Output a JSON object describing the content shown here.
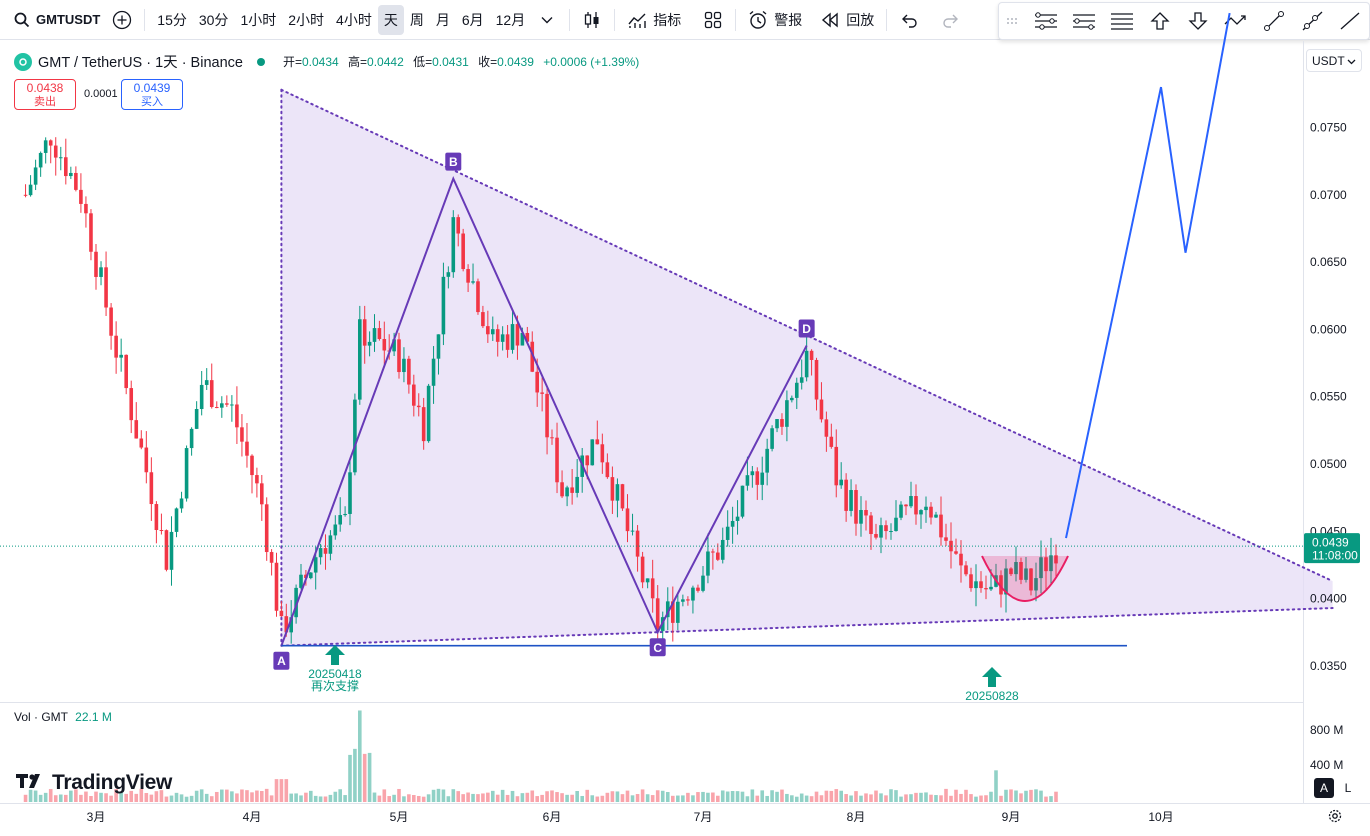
{
  "toolbar": {
    "symbol": "GMTUSDT",
    "intervals": [
      "15分",
      "30分",
      "1小时",
      "2小时",
      "4小时",
      "天",
      "周",
      "月",
      "6月",
      "12月"
    ],
    "active_interval": "天",
    "indicators_label": "指标",
    "alert_label": "警报",
    "replay_label": "回放"
  },
  "drawing_tools": [
    "tool-parallel-channel-icon",
    "tool-regression-icon",
    "tool-horizontal-lines-icon",
    "tool-arrow-up-icon",
    "tool-arrow-down-icon",
    "tool-path-icon",
    "tool-trend-line-icon",
    "tool-ray-icon",
    "tool-line-icon"
  ],
  "legend": {
    "title": "GMT / TetherUS · 1天 · Binance",
    "open_label": "开=",
    "open": "0.0434",
    "high_label": "高=",
    "high": "0.0442",
    "low_label": "低=",
    "low": "0.0431",
    "close_label": "收=",
    "close": "0.0439",
    "change": "+0.0006 (+1.39%)"
  },
  "trade": {
    "sell_price": "0.0438",
    "sell_label": "卖出",
    "spread": "0.0001",
    "buy_price": "0.0439",
    "buy_label": "买入"
  },
  "currency": "USDT",
  "price_scale": {
    "ticks": [
      "0.0750",
      "0.0700",
      "0.0650",
      "0.0600",
      "0.0550",
      "0.0500",
      "0.0450",
      "0.0400",
      "0.0350"
    ],
    "last_price": "0.0439",
    "countdown": "11:08:00"
  },
  "time_axis": [
    "3月",
    "4月",
    "5月",
    "6月",
    "7月",
    "8月",
    "9月",
    "10月"
  ],
  "volume": {
    "label": "Vol · GMT",
    "value": "22.1 M",
    "ticks": [
      "800 M",
      "400 M"
    ]
  },
  "annotations": {
    "points": [
      "A",
      "B",
      "C",
      "D"
    ],
    "arrow1_date": "20250418",
    "arrow1_text": "再次支撑",
    "arrow2_date": "20250828"
  },
  "brand": "TradingView",
  "scale_buttons": {
    "auto": "A",
    "log": "L"
  },
  "colors": {
    "up": "#089981",
    "down": "#f23645",
    "triangle_fill": "#e6dcf5",
    "pattern_line": "#673ab7",
    "projection": "#2962ff",
    "cup": "#e91e63"
  },
  "chart_data": {
    "type": "candlestick",
    "symbol": "GMT / TetherUS",
    "interval": "1天",
    "y_range": [
      0.0327,
      0.0795
    ],
    "last_close": 0.0439,
    "pattern": {
      "A": [
        "2025-04-07",
        0.0365
      ],
      "B": [
        "2025-05-12",
        0.0712
      ],
      "C": [
        "2025-06-22",
        0.0375
      ],
      "D": [
        "2025-07-22",
        0.0588
      ]
    },
    "support_level": 0.0365,
    "projection_path": [
      [
        "2025-09-12",
        0.0445
      ],
      [
        "2025-10-01",
        0.078
      ],
      [
        "2025-10-06",
        0.0657
      ],
      [
        "2025-10-15",
        0.0835
      ]
    ],
    "triangle": {
      "upper_line": [
        [
          "2025-04-07",
          0.0778
        ],
        [
          "2025-11-05",
          0.0413
        ]
      ],
      "lower_line": [
        [
          "2025-04-07",
          0.0365
        ],
        [
          "2025-11-05",
          0.0393
        ]
      ]
    },
    "volume_peak_label": "800 M"
  }
}
